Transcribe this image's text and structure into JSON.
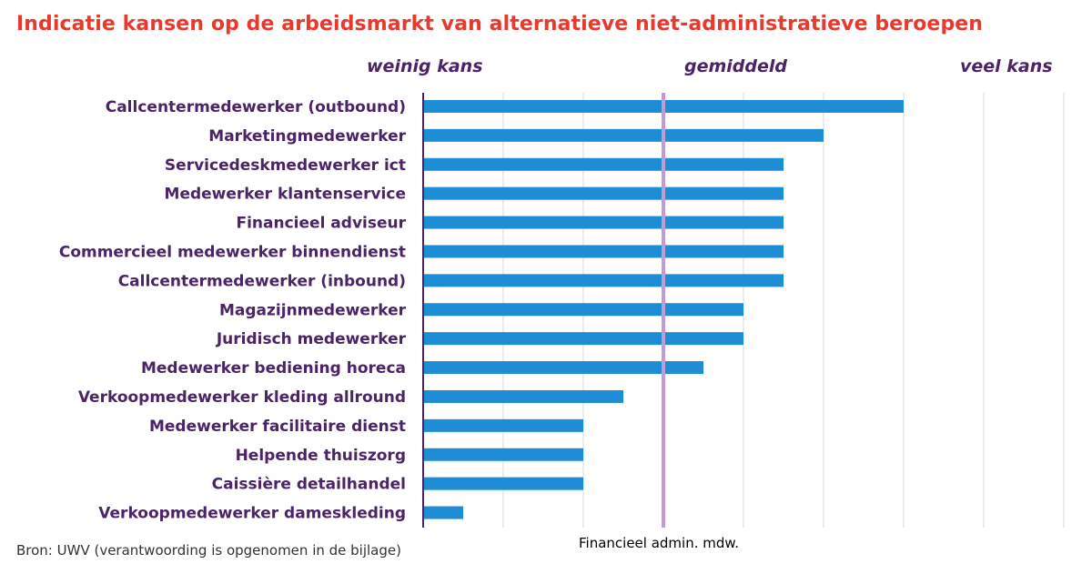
{
  "title": "Indicatie kansen op de arbeidsmarkt van alternatieve niet-administratieve beroepen",
  "source": "Bron: UWV (verantwoording is opgenomen in de bijlage)",
  "colors": {
    "title": "#e8392c",
    "label": "#4b2367",
    "bar": "#1f8dd6",
    "reference_line": "#c39bd3",
    "grid": "#d9d9d9"
  },
  "chart_data": {
    "type": "bar",
    "orientation": "horizontal",
    "zone_labels": [
      "weinig kans",
      "gemiddeld",
      "veel kans"
    ],
    "categories": [
      "Callcentermedewerker (outbound)",
      "Marketingmedewerker",
      "Servicedeskmedewerker ict",
      "Medewerker klantenservice",
      "Financieel adviseur",
      "Commercieel medewerker binnendienst",
      "Callcentermedewerker (inbound)",
      "Magazijnmedewerker",
      "Juridisch medewerker",
      "Medewerker bediening horeca",
      "Verkoopmedewerker kleding allround",
      "Medewerker facilitaire dienst",
      "Helpende thuiszorg",
      "Caissière detailhandel",
      "Verkoopmedewerker dameskleding"
    ],
    "values": [
      6,
      5,
      4.5,
      4.5,
      4.5,
      4.5,
      4.5,
      4,
      4,
      3.5,
      2.5,
      2,
      2,
      2,
      0.5
    ],
    "xlim": [
      0,
      8
    ],
    "reference": {
      "label": "Financieel admin. mdw.",
      "value": 3
    },
    "grid": true,
    "xlabel": "",
    "ylabel": ""
  }
}
